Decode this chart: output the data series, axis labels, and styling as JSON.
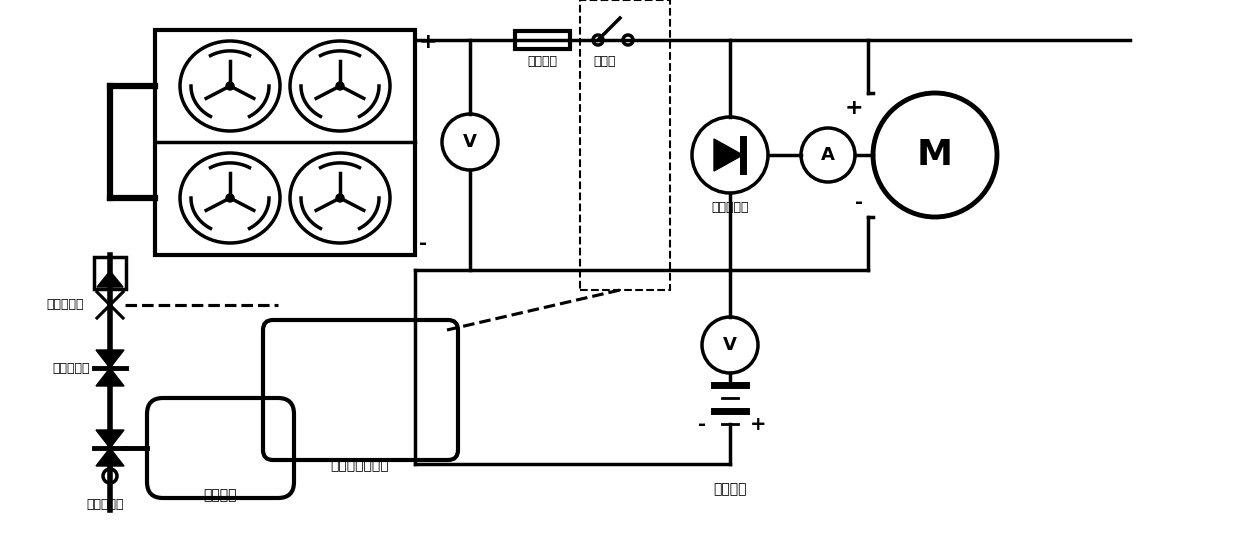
{
  "bg_color": "#ffffff",
  "line_color": "#000000",
  "lw": 2.5,
  "labels": {
    "hydrogen_solenoid": "氢进电磁阀",
    "secondary_pressure": "二级减压阀",
    "primary_pressure": "一级减压阀",
    "high_pressure_tank": "高压氢罐",
    "power_controller": "动力系统控制器",
    "power_resistor": "功率电阻",
    "relay": "继电器",
    "anti_diode": "防反二极管",
    "lithium_battery": "锂电池组"
  }
}
